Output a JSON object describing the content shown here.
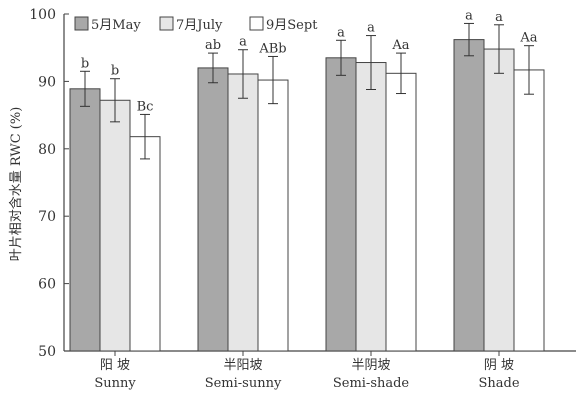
{
  "chart_data": {
    "type": "bar",
    "title": "",
    "xlabel": "",
    "ylabel": "叶片相对含水量 RWC (%)",
    "ylim": [
      50,
      100
    ],
    "yticks": [
      50,
      60,
      70,
      80,
      90,
      100
    ],
    "categories": [
      "阳 坡",
      "半阳坡",
      "半阴坡",
      "阴 坡"
    ],
    "categories_en": [
      "Sunny",
      "Semi-sunny",
      "Semi-shade",
      "Shade"
    ],
    "series": [
      {
        "name": "5月May",
        "color": "#a8a8a8",
        "values": [
          88.9,
          92.0,
          93.5,
          96.2
        ],
        "errors": [
          2.6,
          2.2,
          2.6,
          2.4
        ],
        "labels": [
          "b",
          "ab",
          "a",
          "a"
        ]
      },
      {
        "name": "7月July",
        "color": "#e6e6e6",
        "values": [
          87.2,
          91.1,
          92.8,
          94.8
        ],
        "errors": [
          3.2,
          3.6,
          4.0,
          3.6
        ],
        "labels": [
          "b",
          "a",
          "a",
          "a"
        ]
      },
      {
        "name": "9月Sept",
        "color": "#ffffff",
        "values": [
          81.8,
          90.2,
          91.2,
          91.7
        ],
        "errors": [
          3.3,
          3.5,
          3.0,
          3.6
        ],
        "labels": [
          "Bc",
          "ABb",
          "Aa",
          "Aa"
        ]
      }
    ],
    "legend_position": "top-left",
    "grid": false
  }
}
